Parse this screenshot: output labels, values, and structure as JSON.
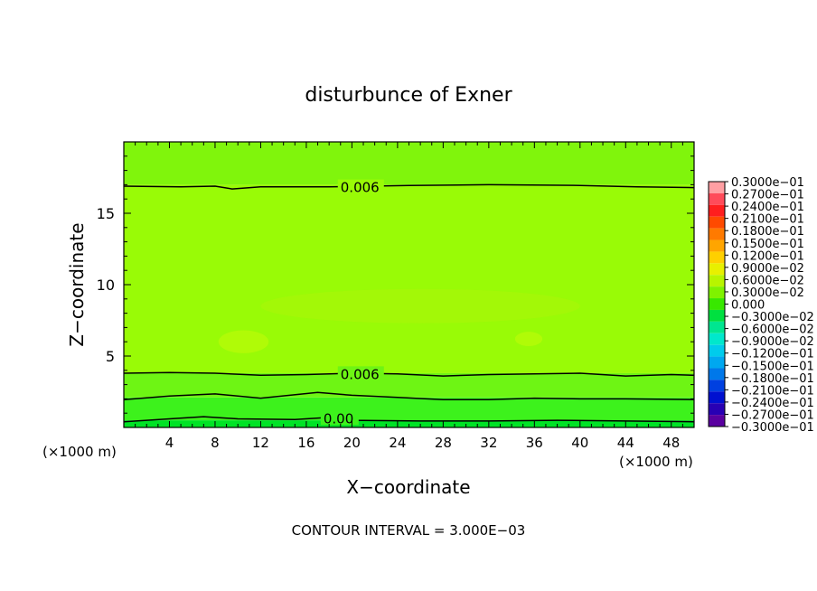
{
  "chart_data": {
    "type": "heatmap",
    "title": "disturbunce of Exner",
    "xlabel": "X−coordinate",
    "ylabel": "Z−coordinate",
    "x_unit": "(×1000 m)",
    "y_unit": "(×1000 m)",
    "xlim": [
      0,
      50
    ],
    "ylim": [
      0,
      20
    ],
    "x_ticks": [
      4,
      8,
      12,
      16,
      20,
      24,
      28,
      32,
      36,
      40,
      44,
      48
    ],
    "y_ticks": [
      5,
      10,
      15
    ],
    "footer": "CONTOUR INTERVAL = 3.000E−03",
    "contours": [
      {
        "label": "0.006",
        "label_x": 19,
        "points": [
          [
            0,
            16.9
          ],
          [
            5,
            16.85
          ],
          [
            8,
            16.9
          ],
          [
            9.5,
            16.7
          ],
          [
            12,
            16.85
          ],
          [
            18,
            16.85
          ],
          [
            25,
            16.95
          ],
          [
            32,
            17.0
          ],
          [
            40,
            16.95
          ],
          [
            45,
            16.85
          ],
          [
            50,
            16.8
          ]
        ]
      },
      {
        "label": "0.006",
        "label_x": 19,
        "points": [
          [
            0,
            3.8
          ],
          [
            4,
            3.85
          ],
          [
            8,
            3.8
          ],
          [
            12,
            3.65
          ],
          [
            16,
            3.7
          ],
          [
            20,
            3.8
          ],
          [
            24,
            3.75
          ],
          [
            28,
            3.6
          ],
          [
            32,
            3.7
          ],
          [
            36,
            3.75
          ],
          [
            40,
            3.8
          ],
          [
            44,
            3.6
          ],
          [
            48,
            3.7
          ],
          [
            50,
            3.65
          ]
        ]
      },
      {
        "label": "",
        "label_x": null,
        "points": [
          [
            0,
            1.95
          ],
          [
            4,
            2.2
          ],
          [
            8,
            2.35
          ],
          [
            12,
            2.05
          ],
          [
            17,
            2.45
          ],
          [
            20,
            2.25
          ],
          [
            24,
            2.1
          ],
          [
            28,
            1.95
          ],
          [
            32,
            1.95
          ],
          [
            36,
            2.05
          ],
          [
            40,
            2.0
          ],
          [
            44,
            2.0
          ],
          [
            50,
            1.95
          ]
        ]
      },
      {
        "label": "0.00",
        "label_x": 17.5,
        "points": [
          [
            0,
            0.4
          ],
          [
            4,
            0.6
          ],
          [
            7,
            0.75
          ],
          [
            10,
            0.6
          ],
          [
            15,
            0.55
          ],
          [
            18,
            0.7
          ],
          [
            20,
            0.5
          ],
          [
            26,
            0.45
          ],
          [
            32,
            0.45
          ],
          [
            38,
            0.5
          ],
          [
            44,
            0.45
          ],
          [
            50,
            0.4
          ]
        ]
      }
    ],
    "fill_bands": [
      {
        "from": 0,
        "to": 0.5,
        "color": "#00e326"
      },
      {
        "from": 0.5,
        "to": 2.1,
        "color": "#3df21c"
      },
      {
        "from": 2.1,
        "to": 3.8,
        "color": "#6ef514"
      },
      {
        "from": 3.8,
        "to": 17,
        "color": "#99fb06"
      },
      {
        "from": 17,
        "to": 20,
        "color": "#80f50c"
      }
    ],
    "highlights": [
      {
        "x": 10.5,
        "y": 6.0,
        "rx": 2.2,
        "ry": 0.8,
        "color": "#b4fa08"
      },
      {
        "x": 35.5,
        "y": 6.2,
        "rx": 1.2,
        "ry": 0.5,
        "color": "#b4fa08"
      },
      {
        "x": 26,
        "y": 8.5,
        "rx": 14,
        "ry": 1.2,
        "color": "#a4f708"
      }
    ],
    "colorbar": {
      "labels": [
        "0.3000e−01",
        "0.2700e−01",
        "0.2400e−01",
        "0.2100e−01",
        "0.1800e−01",
        "0.1500e−01",
        "0.1200e−01",
        "0.9000e−02",
        "0.6000e−02",
        "0.3000e−02",
        "0.000",
        "−0.3000e−02",
        "−0.6000e−02",
        "−0.9000e−02",
        "−0.1200e−01",
        "−0.1500e−01",
        "−0.1800e−01",
        "−0.2100e−01",
        "−0.2400e−01",
        "−0.2700e−01",
        "−0.3000e−01"
      ],
      "colors": [
        "#ff9fa3",
        "#ff4b5a",
        "#ff1e1e",
        "#ff4a00",
        "#ff7a00",
        "#ffa500",
        "#ffd000",
        "#e8f000",
        "#b8f500",
        "#7ff200",
        "#38e800",
        "#00e040",
        "#00e690",
        "#00e8cc",
        "#00ccec",
        "#00a8f0",
        "#0078ea",
        "#0040e0",
        "#0010d0",
        "#2800b4",
        "#5a00a0"
      ]
    }
  }
}
